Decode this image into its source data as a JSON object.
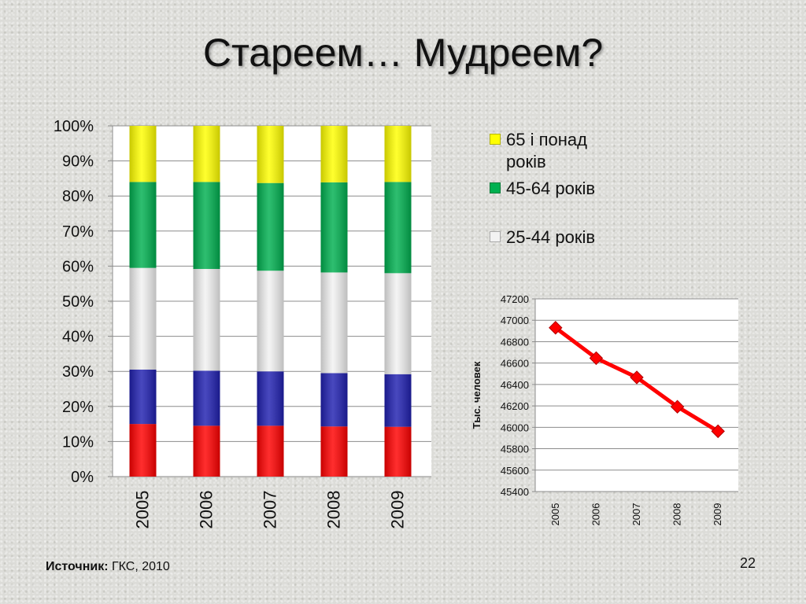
{
  "slide": {
    "title": "Стареем… Мудреем?",
    "source_label": "Источник:",
    "source_value": "ГКС, 2010",
    "page_number": "22"
  },
  "legend": [
    {
      "label": "65 і понад років",
      "color": "#ffff00"
    },
    {
      "label": "45-64 років",
      "color": "#00b050"
    },
    {
      "label": "25-44 років",
      "color": "#f2f2f2"
    }
  ],
  "chart_data": [
    {
      "type": "bar",
      "stacked": "percent",
      "categories": [
        "2005",
        "2006",
        "2007",
        "2008",
        "2009"
      ],
      "y_tick_labels": [
        "0%",
        "10%",
        "20%",
        "30%",
        "40%",
        "50%",
        "60%",
        "70%",
        "80%",
        "90%",
        "100%"
      ],
      "ylim": [
        0,
        100
      ],
      "grid": true,
      "series": [
        {
          "color": "#ff0000",
          "values": [
            15,
            14.5,
            14.5,
            14.3,
            14.2
          ]
        },
        {
          "color": "#2020b0",
          "values": [
            15.5,
            15.7,
            15.5,
            15.2,
            15
          ]
        },
        {
          "name": "25-44 років",
          "color": "#f2f2f2",
          "values": [
            29,
            29,
            28.7,
            28.7,
            28.8
          ]
        },
        {
          "name": "45-64 років",
          "color": "#00b050",
          "values": [
            24.5,
            24.8,
            25,
            25.7,
            26
          ]
        },
        {
          "name": "65 і понад років",
          "color": "#ffff00",
          "values": [
            16,
            16,
            16.3,
            16.1,
            16
          ]
        }
      ],
      "legend_position": "right"
    },
    {
      "type": "line",
      "x": [
        "2005",
        "2006",
        "2007",
        "2008",
        "2009"
      ],
      "y": [
        46930,
        46646,
        46466,
        46192,
        45963
      ],
      "ylabel": "Тыс. человек",
      "ylim": [
        45400,
        47200
      ],
      "y_tick_labels": [
        "45400",
        "45600",
        "45800",
        "46000",
        "46200",
        "46400",
        "46600",
        "46800",
        "47000",
        "47200"
      ],
      "color": "#ff0000",
      "grid": true
    }
  ]
}
